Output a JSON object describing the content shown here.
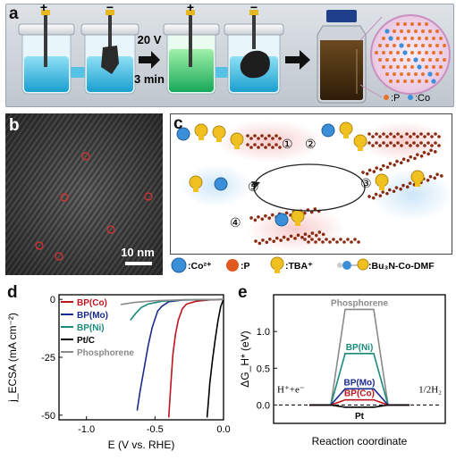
{
  "panel_a": {
    "letter": "a",
    "plus_sign": "+",
    "minus_sign": "−",
    "voltage": "20 V",
    "duration": "3 min",
    "legend_p": ":P",
    "legend_co": ":Co"
  },
  "panel_b": {
    "letter": "b",
    "scale_bar_label": "10 nm"
  },
  "panel_c": {
    "letter": "c",
    "steps": [
      "①",
      "②",
      "③",
      "④",
      "⑤"
    ],
    "legend": {
      "co": ":Co²⁺",
      "p": ":P",
      "tba": ":TBA⁺",
      "complex": ":Bu₃N-Co-DMF"
    }
  },
  "panel_d": {
    "letter": "d"
  },
  "panel_e": {
    "letter": "e"
  },
  "chart_data": [
    {
      "type": "line",
      "panel": "d",
      "xlabel": "E (V vs. RHE)",
      "ylabel": "j_ECSA (mA cm⁻²)",
      "xlim": [
        -1.2,
        0.0
      ],
      "ylim": [
        -52,
        2
      ],
      "xticks": [
        "-1.0",
        "-0.5",
        "0.0"
      ],
      "yticks": [
        "0",
        "-25",
        "-50"
      ],
      "legend_position": "top-left",
      "series": [
        {
          "name": "BP(Co)",
          "color": "#c0141c",
          "x": [
            0.0,
            -0.1,
            -0.2,
            -0.27,
            -0.3,
            -0.33,
            -0.35,
            -0.37,
            -0.38,
            -0.39,
            -0.4
          ],
          "y": [
            0,
            -0.2,
            -0.8,
            -2,
            -4,
            -9,
            -15,
            -24,
            -33,
            -42,
            -51
          ]
        },
        {
          "name": "BP(Mo)",
          "color": "#1a2a8c",
          "x": [
            0.0,
            -0.3,
            -0.4,
            -0.45,
            -0.48,
            -0.52,
            -0.55,
            -0.58,
            -0.61,
            -0.63
          ],
          "y": [
            0,
            -0.3,
            -1,
            -3,
            -5,
            -12,
            -20,
            -30,
            -40,
            -48
          ]
        },
        {
          "name": "BP(Ni)",
          "color": "#1a8a7a",
          "x": [
            0.0,
            -0.3,
            -0.45,
            -0.55,
            -0.6,
            -0.64,
            -0.68
          ],
          "y": [
            0,
            -0.2,
            -0.8,
            -2,
            -3.5,
            -6,
            -9
          ]
        },
        {
          "name": "Pt/C",
          "color": "#000000",
          "x": [
            0.0,
            -0.02,
            -0.04,
            -0.06,
            -0.08,
            -0.1,
            -0.11,
            -0.12
          ],
          "y": [
            0,
            -3,
            -9,
            -17,
            -26,
            -36,
            -44,
            -51
          ]
        },
        {
          "name": "Phosphorene",
          "color": "#8a8a8a",
          "x": [
            0.0,
            -0.3,
            -0.5,
            -0.65,
            -0.75
          ],
          "y": [
            0,
            -0.2,
            -0.6,
            -1.3,
            -2.2
          ]
        }
      ]
    },
    {
      "type": "line",
      "panel": "e",
      "xlabel": "Reaction coordinate",
      "ylabel": "ΔG_H* (eV)",
      "ylim": [
        -0.25,
        1.5
      ],
      "yticks": [
        "0.0",
        "0.5",
        "1.0"
      ],
      "endpoint_labels": [
        "H⁺+e⁻",
        "1/2H₂"
      ],
      "series": [
        {
          "name": "Phosphorene",
          "color": "#8a8a8a",
          "value": 1.3
        },
        {
          "name": "BP(Ni)",
          "color": "#1a8a7a",
          "value": 0.7
        },
        {
          "name": "BP(Mo)",
          "color": "#1a2a8c",
          "value": 0.22
        },
        {
          "name": "BP(Co)",
          "color": "#c0141c",
          "value": 0.07
        },
        {
          "name": "Pt",
          "color": "#000000",
          "value": -0.03
        }
      ]
    }
  ],
  "colors": {
    "co_atom": "#3a8fd8",
    "p_atom": "#e8722c",
    "tba": "#f0c020",
    "liquid_blue": "#3bb8e0",
    "liquid_green": "#34c26a",
    "bottle_liquid": "#4a3010"
  }
}
